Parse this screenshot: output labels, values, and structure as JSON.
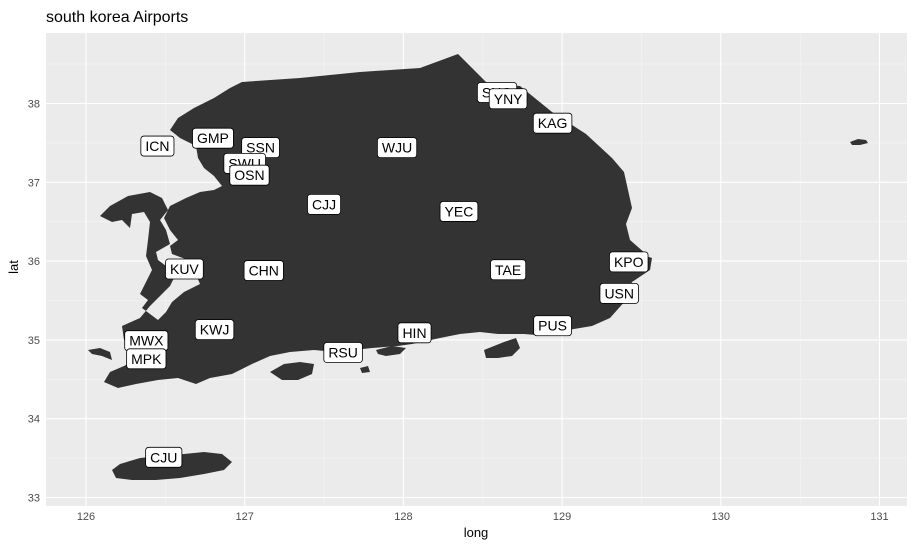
{
  "chart_data": {
    "type": "map",
    "title": "south korea Airports",
    "xlabel": "long",
    "ylabel": "lat",
    "xlim": [
      125.8,
      131.2
    ],
    "ylim": [
      32.95,
      38.75
    ],
    "x_ticks": [
      126,
      127,
      128,
      129,
      130,
      131
    ],
    "y_ticks": [
      33,
      34,
      35,
      36,
      37,
      38
    ],
    "grid": true,
    "colors": {
      "panel_background": "#ebebeb",
      "grid_major": "#ffffff",
      "grid_minor": "#f5f5f5",
      "land_fill": "#333333",
      "label_fill": "#ffffff",
      "label_border": "#000000"
    },
    "airports": [
      {
        "code": "SHO",
        "long": 128.59,
        "lat": 38.14
      },
      {
        "code": "YNY",
        "long": 128.66,
        "lat": 38.06
      },
      {
        "code": "KAG",
        "long": 128.94,
        "lat": 37.75
      },
      {
        "code": "GMP",
        "long": 126.8,
        "lat": 37.56
      },
      {
        "code": "ICN",
        "long": 126.45,
        "lat": 37.46
      },
      {
        "code": "SSN",
        "long": 127.1,
        "lat": 37.44
      },
      {
        "code": "WJU",
        "long": 127.96,
        "lat": 37.44
      },
      {
        "code": "SWU",
        "long": 127.0,
        "lat": 37.24
      },
      {
        "code": "OSN",
        "long": 127.03,
        "lat": 37.09
      },
      {
        "code": "CJJ",
        "long": 127.5,
        "lat": 36.72
      },
      {
        "code": "YEC",
        "long": 128.35,
        "lat": 36.63
      },
      {
        "code": "KPO",
        "long": 129.42,
        "lat": 35.99
      },
      {
        "code": "KUV",
        "long": 126.62,
        "lat": 35.9
      },
      {
        "code": "TAE",
        "long": 128.66,
        "lat": 35.89
      },
      {
        "code": "CHN",
        "long": 127.12,
        "lat": 35.88
      },
      {
        "code": "USN",
        "long": 129.36,
        "lat": 35.59
      },
      {
        "code": "PUS",
        "long": 128.94,
        "lat": 35.18
      },
      {
        "code": "KWJ",
        "long": 126.81,
        "lat": 35.13
      },
      {
        "code": "HIN",
        "long": 128.07,
        "lat": 35.09
      },
      {
        "code": "MWX",
        "long": 126.38,
        "lat": 34.99
      },
      {
        "code": "RSU",
        "long": 127.62,
        "lat": 34.84
      },
      {
        "code": "MPK",
        "long": 126.38,
        "lat": 34.76
      },
      {
        "code": "CJU",
        "long": 126.49,
        "lat": 33.51
      }
    ]
  }
}
